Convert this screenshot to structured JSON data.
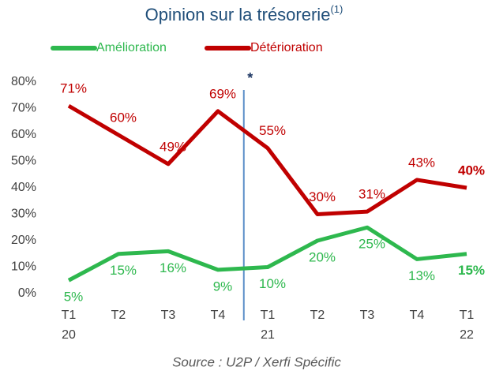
{
  "chart_data": {
    "type": "line",
    "title": "Opinion sur la trésorerie",
    "title_note": "(1)",
    "categories": [
      [
        "T1",
        "20"
      ],
      [
        "T2"
      ],
      [
        "T3"
      ],
      [
        "T4"
      ],
      [
        "T1",
        "21"
      ],
      [
        "T2"
      ],
      [
        "T3"
      ],
      [
        "T4"
      ],
      [
        "T1",
        "22"
      ]
    ],
    "series": [
      {
        "name": "Amélioration",
        "color": "#2eb84e",
        "values": [
          5,
          15,
          16,
          9,
          10,
          20,
          25,
          13,
          15
        ],
        "value_labels": [
          "5%",
          "15%",
          "16%",
          "9%",
          "10%",
          "20%",
          "25%",
          "13%",
          "15%"
        ]
      },
      {
        "name": "Détérioration",
        "color": "#c00000",
        "values": [
          71,
          60,
          49,
          69,
          55,
          30,
          31,
          43,
          40
        ],
        "value_labels": [
          "71%",
          "60%",
          "49%",
          "69%",
          "55%",
          "30%",
          "31%",
          "43%",
          "40%"
        ]
      }
    ],
    "ylim": [
      0,
      80
    ],
    "yticks": [
      {
        "value": 0,
        "label": "0%"
      },
      {
        "value": 10,
        "label": "10%"
      },
      {
        "value": 20,
        "label": "20%"
      },
      {
        "value": 30,
        "label": "30%"
      },
      {
        "value": 40,
        "label": "40%"
      },
      {
        "value": 50,
        "label": "50%"
      },
      {
        "value": 60,
        "label": "60%"
      },
      {
        "value": 70,
        "label": "70%"
      },
      {
        "value": 80,
        "label": "80%"
      }
    ],
    "grid": false,
    "legend": "top",
    "annotation": "*",
    "source": "Source : U2P / Xerfi Spécific"
  }
}
